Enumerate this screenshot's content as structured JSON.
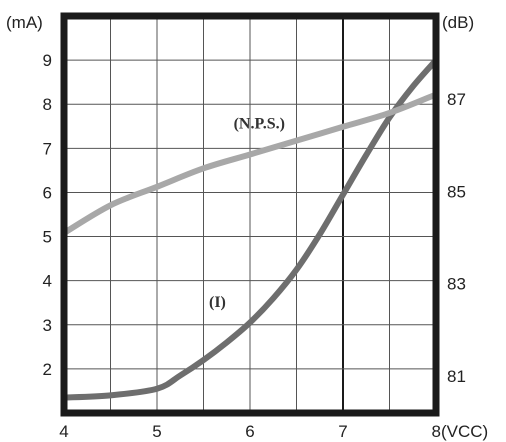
{
  "chart_data": {
    "type": "line",
    "x_unit_label": "(VCC)",
    "y_left_unit_label": "(mA)",
    "y_right_unit_label": "(dB)",
    "x_ticks": [
      4,
      5,
      6,
      7,
      8
    ],
    "y_left_ticks": [
      2,
      3,
      4,
      5,
      6,
      7,
      8,
      9
    ],
    "y_right_ticks": [
      81,
      83,
      85,
      87
    ],
    "xlim": [
      4,
      8
    ],
    "ylim_left": [
      1,
      10
    ],
    "ylim_right": [
      80.2,
      88.8
    ],
    "grid": true,
    "series": [
      {
        "name": "(I)",
        "axis": "left",
        "color": "#6e6e6e",
        "points": [
          [
            4,
            1.35
          ],
          [
            4.5,
            1.4
          ],
          [
            5,
            1.55
          ],
          [
            5.25,
            1.85
          ],
          [
            5.5,
            2.2
          ],
          [
            5.75,
            2.6
          ],
          [
            6,
            3.05
          ],
          [
            6.25,
            3.6
          ],
          [
            6.5,
            4.25
          ],
          [
            6.75,
            5.05
          ],
          [
            7,
            5.95
          ],
          [
            7.25,
            6.85
          ],
          [
            7.5,
            7.7
          ],
          [
            7.75,
            8.4
          ],
          [
            8,
            9.0
          ]
        ]
      },
      {
        "name": "(N.P.S.)",
        "axis": "right",
        "color": "#a8a8a8",
        "points": [
          [
            4,
            84.1
          ],
          [
            4.5,
            84.7
          ],
          [
            5,
            85.1
          ],
          [
            5.5,
            85.5
          ],
          [
            6,
            85.8
          ],
          [
            6.5,
            86.1
          ],
          [
            7,
            86.4
          ],
          [
            7.5,
            86.7
          ],
          [
            8,
            87.1
          ]
        ]
      }
    ],
    "annotations": [
      {
        "text": "(N.P.S.)",
        "x": 6.1,
        "y": 7.45,
        "axis": "left"
      },
      {
        "text": "(I)",
        "x": 5.65,
        "y": 3.4,
        "axis": "left"
      }
    ]
  }
}
